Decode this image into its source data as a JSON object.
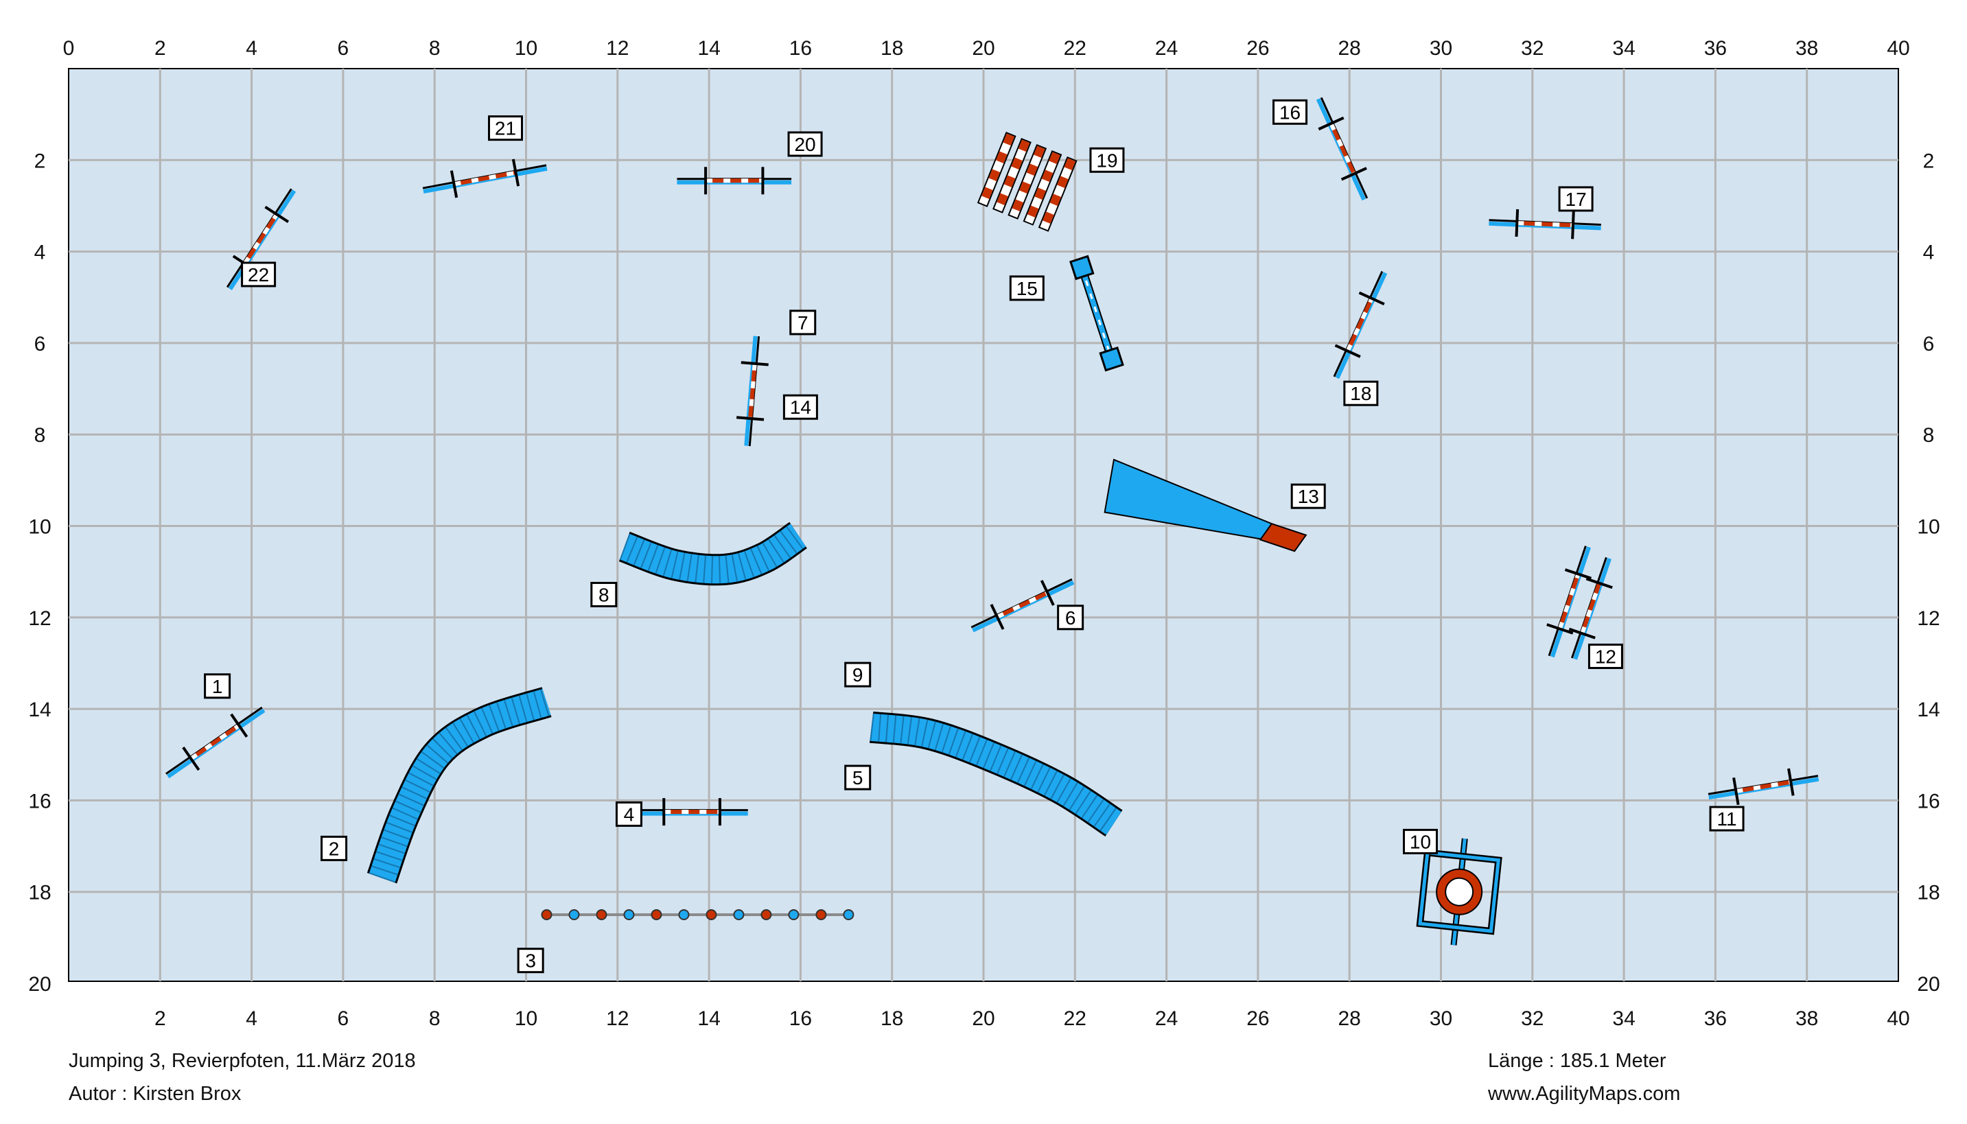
{
  "course": {
    "title": "Jumping 3, Revierpfoten, 11.März 2018",
    "author": "Autor : Kirsten Brox",
    "length": "Länge : 185.1 Meter",
    "website": "www.AgilityMaps.com"
  },
  "arena": {
    "width_m": 40,
    "height_m": 20,
    "x_ticks": [
      "0",
      "2",
      "4",
      "6",
      "8",
      "10",
      "12",
      "14",
      "16",
      "18",
      "20",
      "22",
      "24",
      "26",
      "28",
      "30",
      "32",
      "34",
      "36",
      "38",
      "40"
    ],
    "y_ticks": [
      "2",
      "4",
      "6",
      "8",
      "10",
      "12",
      "14",
      "16",
      "18",
      "20"
    ],
    "colors": {
      "field": "#d4e3f0",
      "grid": "#b4b4b4",
      "accent": "#1ea8f0",
      "pole": "#c83200",
      "frame": "#000000"
    }
  },
  "labels": [
    {
      "text": "1",
      "x": 3.25,
      "y": 13.5
    },
    {
      "text": "2",
      "x": 5.8,
      "y": 17.05
    },
    {
      "text": "3",
      "x": 10.1,
      "y": 19.5
    },
    {
      "text": "4",
      "x": 12.25,
      "y": 16.3
    },
    {
      "text": "5",
      "x": 17.25,
      "y": 15.5
    },
    {
      "text": "6",
      "x": 21.9,
      "y": 12.0
    },
    {
      "text": "7",
      "x": 16.05,
      "y": 5.55
    },
    {
      "text": "8",
      "x": 11.7,
      "y": 11.5
    },
    {
      "text": "9",
      "x": 17.25,
      "y": 13.25
    },
    {
      "text": "10",
      "x": 29.55,
      "y": 16.9
    },
    {
      "text": "11",
      "x": 36.25,
      "y": 16.4
    },
    {
      "text": "12",
      "x": 33.6,
      "y": 12.85
    },
    {
      "text": "13",
      "x": 27.1,
      "y": 9.35
    },
    {
      "text": "14",
      "x": 16.0,
      "y": 7.4
    },
    {
      "text": "15",
      "x": 20.95,
      "y": 4.8
    },
    {
      "text": "16",
      "x": 26.7,
      "y": 0.95
    },
    {
      "text": "17",
      "x": 32.95,
      "y": 2.85
    },
    {
      "text": "18",
      "x": 28.25,
      "y": 7.1
    },
    {
      "text": "19",
      "x": 22.7,
      "y": 2.0
    },
    {
      "text": "20",
      "x": 16.1,
      "y": 1.65
    },
    {
      "text": "21",
      "x": 9.55,
      "y": 1.3
    },
    {
      "text": "22",
      "x": 4.15,
      "y": 4.5
    }
  ],
  "jumps": [
    {
      "name": "jump-1",
      "x1": 2.15,
      "y1": 15.45,
      "x2": 4.25,
      "y2": 14.0
    },
    {
      "name": "jump-4",
      "x1": 12.4,
      "y1": 16.25,
      "x2": 14.85,
      "y2": 16.25
    },
    {
      "name": "jump-6",
      "x1": 19.75,
      "y1": 12.25,
      "x2": 21.95,
      "y2": 11.2
    },
    {
      "name": "jump-7-14",
      "x1": 15.05,
      "y1": 5.85,
      "x2": 14.85,
      "y2": 8.25
    },
    {
      "name": "jump-11",
      "x1": 35.85,
      "y1": 15.9,
      "y2": 15.5,
      "x2": 38.25
    },
    {
      "name": "jump-12a",
      "x1": 32.4,
      "y1": 12.85,
      "x2": 33.2,
      "y2": 10.45
    },
    {
      "name": "jump-12b",
      "x1": 32.9,
      "y1": 12.9,
      "x2": 33.65,
      "y2": 10.7
    },
    {
      "name": "jump-16",
      "x1": 27.35,
      "y1": 0.65,
      "x2": 28.35,
      "y2": 2.85
    },
    {
      "name": "jump-17",
      "x1": 31.05,
      "y1": 3.35,
      "x2": 33.5,
      "y2": 3.45
    },
    {
      "name": "jump-18",
      "x1": 27.7,
      "y1": 6.75,
      "x2": 28.75,
      "y2": 4.45
    },
    {
      "name": "jump-20",
      "x1": 13.3,
      "y1": 2.45,
      "x2": 15.8,
      "y2": 2.45
    },
    {
      "name": "jump-21",
      "x1": 7.75,
      "y1": 2.65,
      "x2": 10.45,
      "y2": 2.15
    },
    {
      "name": "jump-22",
      "x1": 3.5,
      "y1": 4.8,
      "x2": 4.9,
      "y2": 2.65
    }
  ],
  "tunnels": [
    {
      "name": "tunnel-2",
      "points": [
        [
          6.85,
          17.7
        ],
        [
          7.35,
          16.3
        ],
        [
          8.05,
          15.0
        ],
        [
          9.05,
          14.3
        ],
        [
          10.45,
          13.85
        ]
      ]
    },
    {
      "name": "tunnel-8",
      "points": [
        [
          12.15,
          10.45
        ],
        [
          13.25,
          10.85
        ],
        [
          14.35,
          10.95
        ],
        [
          15.2,
          10.7
        ],
        [
          15.95,
          10.2
        ]
      ]
    },
    {
      "name": "tunnel-5-9",
      "points": [
        [
          17.55,
          14.4
        ],
        [
          18.8,
          14.55
        ],
        [
          20.2,
          15.05
        ],
        [
          21.7,
          15.75
        ],
        [
          22.85,
          16.5
        ]
      ]
    }
  ],
  "weave": {
    "x1": 10.45,
    "x2": 17.05,
    "y": 18.5,
    "count": 12
  },
  "chute": {
    "apex": [
      [
        22.85,
        8.55
      ],
      [
        22.65,
        9.7
      ]
    ],
    "fabric_start": [
      [
        26.05,
        10.2
      ],
      [
        26.15,
        10.3
      ]
    ],
    "end": [
      [
        27.05,
        9.95
      ],
      [
        26.85,
        10.55
      ]
    ]
  },
  "table": {
    "cx": 30.4,
    "cy": 18.0
  },
  "long_jump": {
    "x": 20.2,
    "y": 2.3,
    "boards": 5
  },
  "tyre_stand": {
    "x1": 22.15,
    "y1": 4.35,
    "x2": 22.8,
    "y2": 6.35
  }
}
